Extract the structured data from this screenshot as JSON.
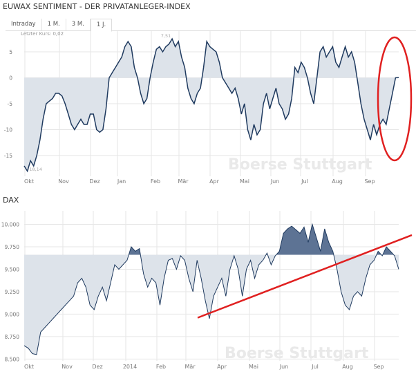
{
  "header": {
    "title": "EUWAX SENTIMENT - DER PRIVATANLEGER-INDEX"
  },
  "tabs": [
    {
      "label": "Intraday"
    },
    {
      "label": "1 M."
    },
    {
      "label": "3 M."
    },
    {
      "label": "1 J.",
      "active": true
    }
  ],
  "watermark": "Boerse Stuttgart",
  "colors": {
    "line": "#1f3a5f",
    "fill_light": "#dde3ea",
    "fill_dark": "#5d7394",
    "annotation": "#e02020"
  },
  "chart_data": [
    {
      "type": "area",
      "title": "EUWAX SENTIMENT - DER PRIVATANLEGER-INDEX",
      "last_label": "Letzter Kurs: 0,02",
      "max_label": "7,51",
      "min_label": "-18,14",
      "x_ticks": [
        "Okt",
        "Nov",
        "Dez",
        "Jan",
        "Feb",
        "Mär",
        "Apr",
        "Mai",
        "Jun",
        "Jul",
        "Aug",
        "Sep"
      ],
      "y_ticks": [
        "5",
        "0",
        "-5",
        "-10",
        "-15"
      ],
      "ylim": [
        -19,
        9
      ],
      "baseline": 0,
      "grid": true,
      "values": [
        -17,
        -18,
        -16,
        -17,
        -15,
        -12,
        -8,
        -5,
        -4.5,
        -4,
        -3,
        -3,
        -3.5,
        -5,
        -7,
        -9,
        -10,
        -9,
        -8,
        -9,
        -9,
        -7,
        -7,
        -10,
        -10.5,
        -10,
        -6,
        0,
        1,
        2,
        3,
        4,
        6,
        7,
        6,
        2,
        0,
        -3,
        -5,
        -4,
        0,
        3,
        5.5,
        6,
        5,
        6,
        6.5,
        7.51,
        6,
        7,
        4,
        2,
        -2,
        -4,
        -5,
        -3,
        -2,
        2,
        7,
        6,
        5.5,
        5,
        3,
        0,
        -1,
        -2,
        -3,
        -2,
        -4,
        -7,
        -5,
        -10,
        -12,
        -9,
        -11,
        -10,
        -5,
        -3,
        -6,
        -4,
        -2,
        -5,
        -6,
        -8,
        -7,
        -4,
        2,
        1,
        3,
        2,
        0,
        -3,
        -5,
        0,
        5,
        6,
        4,
        5,
        6,
        3,
        2,
        4,
        6,
        4,
        5,
        3,
        -1,
        -5,
        -8,
        -10,
        -12,
        -9,
        -11,
        -9,
        -8,
        -9,
        -6,
        -3,
        0,
        0.02
      ]
    },
    {
      "type": "area",
      "title": "DAX",
      "x_ticks": [
        "Okt",
        "Nov",
        "Dez",
        "2014",
        "Feb",
        "Mär",
        "Apr",
        "Mai",
        "Jun",
        "Jul",
        "Aug",
        "Sep"
      ],
      "y_ticks": [
        "10.000",
        "9.750",
        "9.500",
        "9.250",
        "9.000",
        "8.750",
        "8.500"
      ],
      "ylim": [
        8480,
        10150
      ],
      "baseline": 9660,
      "grid": true,
      "values": [
        8650,
        8620,
        8560,
        8550,
        8800,
        8850,
        8900,
        8950,
        9000,
        9050,
        9100,
        9150,
        9200,
        9350,
        9400,
        9300,
        9100,
        9050,
        9200,
        9300,
        9150,
        9350,
        9550,
        9500,
        9550,
        9600,
        9750,
        9700,
        9730,
        9450,
        9300,
        9400,
        9350,
        9100,
        9400,
        9600,
        9620,
        9500,
        9650,
        9600,
        9400,
        9250,
        9600,
        9400,
        9150,
        8950,
        9200,
        9300,
        9400,
        9200,
        9500,
        9650,
        9500,
        9200,
        9500,
        9600,
        9400,
        9550,
        9600,
        9680,
        9550,
        9650,
        9700,
        9900,
        9950,
        9980,
        9940,
        9900,
        9970,
        9800,
        10000,
        9850,
        9700,
        9950,
        9800,
        9700,
        9500,
        9250,
        9100,
        9050,
        9200,
        9250,
        9200,
        9400,
        9550,
        9600,
        9700,
        9650,
        9750,
        9700,
        9650,
        9500
      ],
      "annotation": {
        "type": "trendline",
        "from": {
          "x": "Mär",
          "y": 8960
        },
        "to": {
          "x": "beyond Sep",
          "y": 9880
        }
      }
    }
  ]
}
